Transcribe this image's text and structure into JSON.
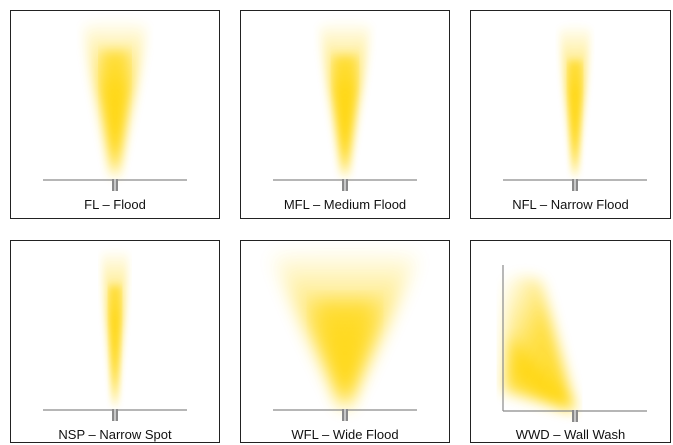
{
  "beam_colors": {
    "light": "#ffd400",
    "floor": "#8a8a8a",
    "fixture": "#7a7a7a"
  },
  "panels": [
    {
      "label": "FL – Flood",
      "beam": "flood"
    },
    {
      "label": "MFL – Medium Flood",
      "beam": "medium-flood"
    },
    {
      "label": "NFL – Narrow Flood",
      "beam": "narrow-flood"
    },
    {
      "label": "NSP – Narrow Spot",
      "beam": "narrow-spot"
    },
    {
      "label": "WFL – Wide Flood",
      "beam": "wide-flood"
    },
    {
      "label": "WWD – Wall Wash",
      "beam": "wall-wash"
    }
  ]
}
